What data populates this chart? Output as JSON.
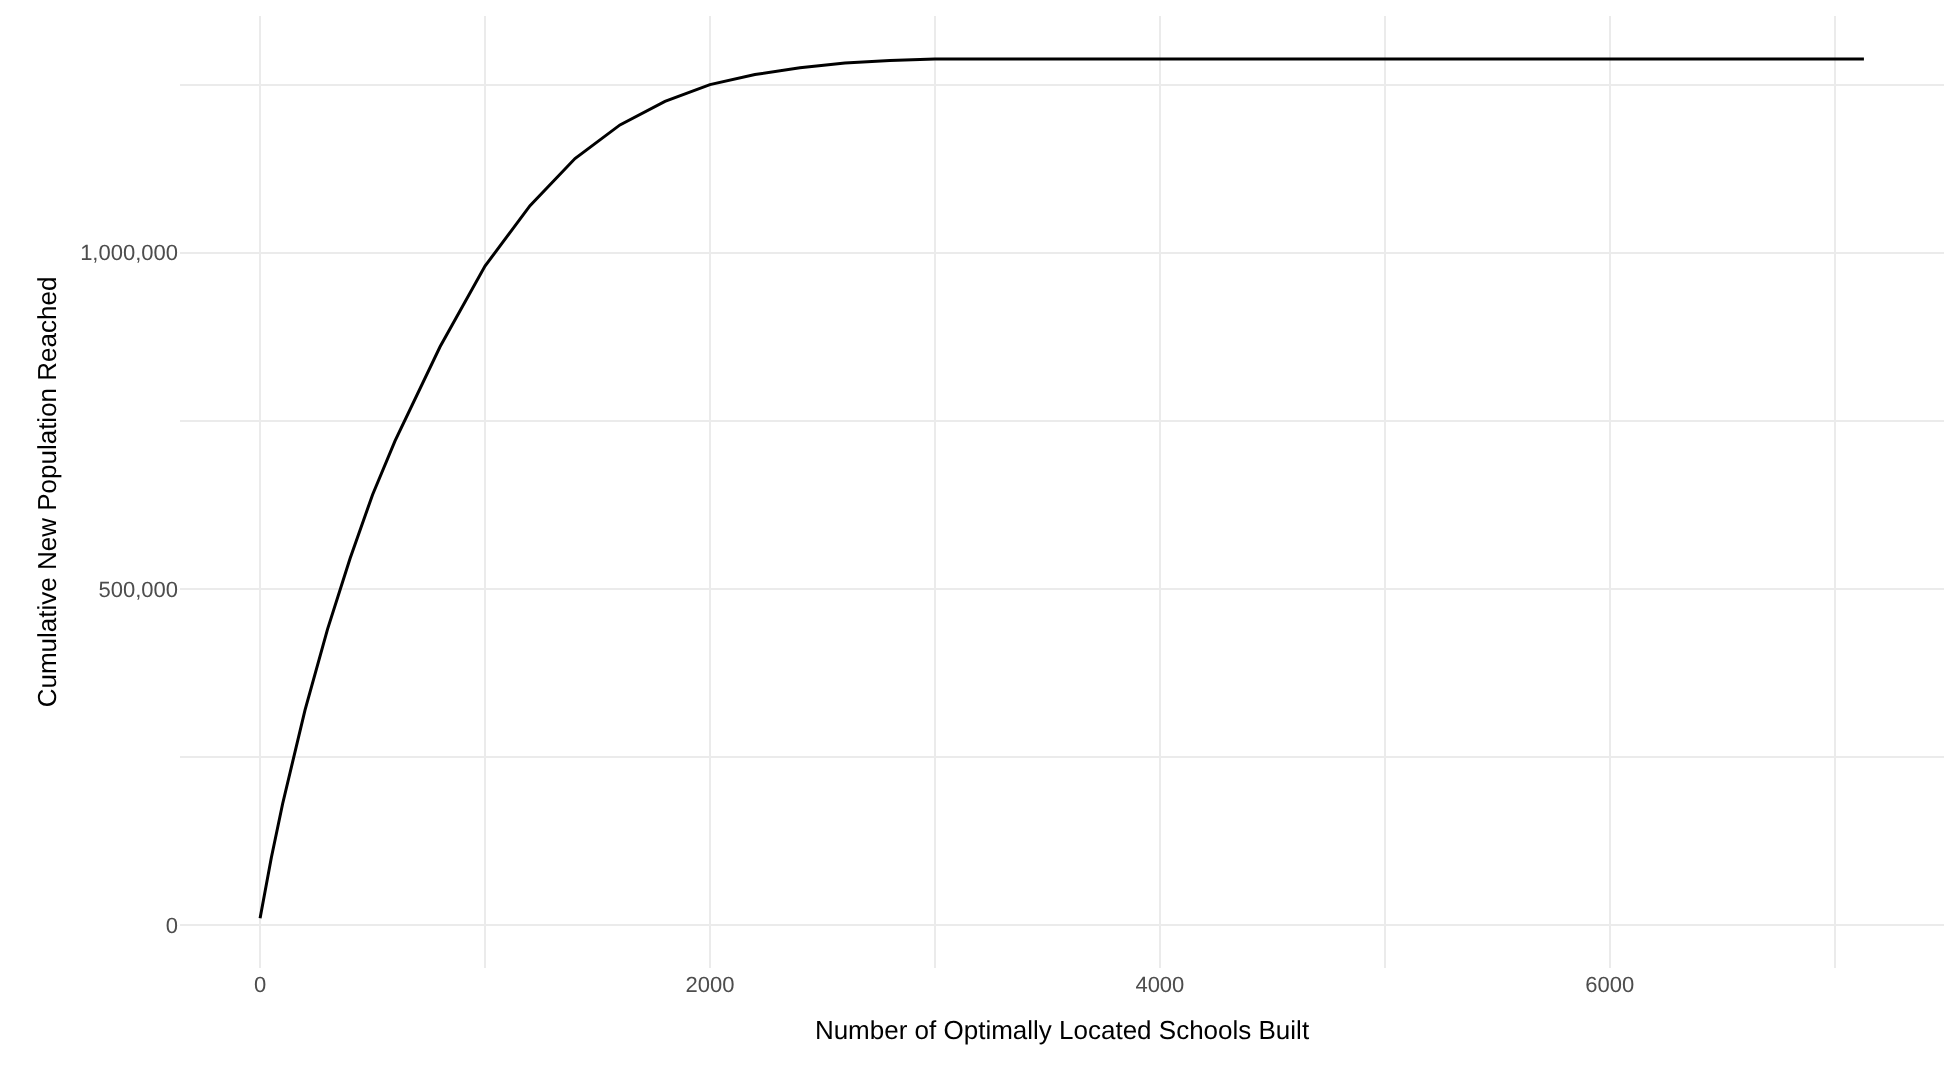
{
  "chart_data": {
    "type": "line",
    "xlabel": "Number of Optimally Located Schools Built",
    "ylabel": "Cumulative New Population Reached",
    "x": [
      0,
      50,
      100,
      200,
      300,
      400,
      500,
      600,
      800,
      1000,
      1200,
      1400,
      1600,
      1800,
      2000,
      2200,
      2400,
      2600,
      2800,
      3000,
      7130
    ],
    "series": [
      {
        "color": "#000000",
        "values": [
          10000,
          100000,
          180000,
          320000,
          440000,
          545000,
          640000,
          720000,
          860000,
          980000,
          1070000,
          1140000,
          1190000,
          1225000,
          1250000,
          1265000,
          1275000,
          1282000,
          1286000,
          1288000,
          1288000
        ]
      }
    ],
    "xlim": [
      -356,
      7486
    ],
    "xticks": [
      0,
      {
        "value": 1000,
        "label": null
      },
      2000,
      {
        "value": 3000,
        "label": null
      },
      4000,
      {
        "value": 5000,
        "label": null
      },
      6000,
      {
        "value": 7000,
        "label": null
      }
    ],
    "ylim": [
      -64000,
      1352000
    ],
    "yticks": [
      {
        "value": 0,
        "label": "0"
      },
      {
        "value": 250000,
        "label": null
      },
      {
        "value": 500000,
        "label": "500,000"
      },
      {
        "value": 750000,
        "label": null
      },
      {
        "value": 1000000,
        "label": "1,000,000"
      },
      {
        "value": 1250000,
        "label": null
      }
    ],
    "grid": true,
    "marker": "none",
    "line_style": "solid"
  }
}
